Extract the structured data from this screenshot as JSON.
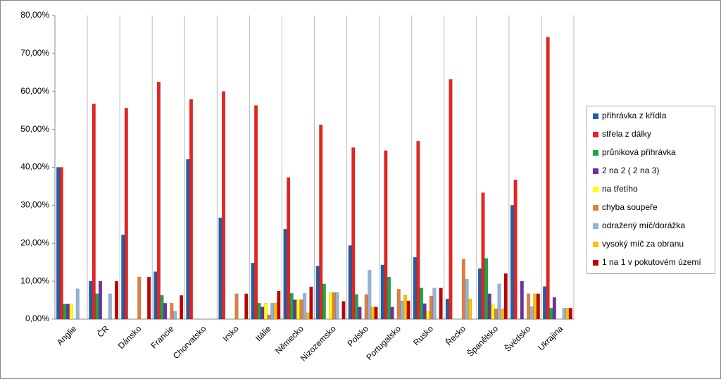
{
  "chart_data": {
    "type": "bar",
    "categories": [
      "Anglie",
      "ČR",
      "Dánsko",
      "Francie",
      "Chorvatsko",
      "Irsko",
      "Itálie",
      "Německo",
      "Nizozemsko",
      "Polsko",
      "Portugalsko",
      "Rusko",
      "Řecko",
      "Španělsko",
      "Švédsko",
      "Ukrajina"
    ],
    "series": [
      {
        "name": "přihrávka z křídla",
        "color": "#1f5fa8",
        "values": [
          40,
          10,
          22.2,
          12.5,
          42.1,
          26.7,
          14.8,
          23.7,
          14,
          19.4,
          14.3,
          16.3,
          5.3,
          13.3,
          30,
          8.6
        ]
      },
      {
        "name": "střela z dálky",
        "color": "#e8231f",
        "values": [
          40,
          56.7,
          55.6,
          62.5,
          57.9,
          60,
          56.3,
          37.3,
          51.2,
          45.2,
          44.4,
          46.9,
          63.2,
          33.3,
          36.7,
          74.3
        ]
      },
      {
        "name": "průniková přihrávka",
        "color": "#18a84a",
        "values": [
          4,
          6.7,
          0,
          6.25,
          0,
          0,
          4.2,
          6.8,
          9.3,
          6.5,
          11.1,
          8.2,
          0,
          16,
          0,
          2.9
        ]
      },
      {
        "name": "2 na 2 ( 2 na 3)",
        "color": "#7030a0",
        "values": [
          4,
          10,
          0,
          4.2,
          0,
          0,
          3.2,
          5.1,
          0,
          3.2,
          3.2,
          4.1,
          0,
          6.7,
          10,
          5.7
        ]
      },
      {
        "name": "na třetího",
        "color": "#ffff00",
        "values": [
          4,
          0,
          0,
          0,
          0,
          0,
          4.2,
          5.1,
          7,
          0,
          0,
          2,
          0,
          4,
          0,
          0
        ]
      },
      {
        "name": "chyba soupeře",
        "color": "#e08040",
        "values": [
          0,
          0,
          11.1,
          4.2,
          0,
          6.7,
          1.1,
          5.1,
          7,
          6.5,
          7.9,
          6.1,
          15.8,
          2.7,
          6.7,
          0
        ]
      },
      {
        "name": "odražený míč/dorážka",
        "color": "#95b3d7",
        "values": [
          8,
          6.7,
          0,
          2.1,
          0,
          0,
          4.2,
          6.8,
          7,
          12.9,
          4.8,
          8.2,
          10.5,
          9.3,
          3.3,
          2.9
        ]
      },
      {
        "name": "vysoký míč za obranu",
        "color": "#ffc000",
        "values": [
          0,
          0,
          0,
          0,
          0,
          0,
          4.2,
          1.7,
          0,
          3.2,
          6.3,
          0,
          5.3,
          2.7,
          6.7,
          2.9
        ]
      },
      {
        "name": "1 na 1 v pokutovém území",
        "color": "#c00000",
        "values": [
          0,
          10,
          11.1,
          6.25,
          0,
          6.7,
          7.4,
          8.5,
          4.7,
          3.2,
          4.8,
          8.2,
          0,
          12,
          6.7,
          2.9
        ]
      }
    ],
    "ylim": [
      0,
      80
    ],
    "yticks": [
      {
        "value": 0,
        "label": "0,00%"
      },
      {
        "value": 10,
        "label": "10,00%"
      },
      {
        "value": 20,
        "label": "20,00%"
      },
      {
        "value": 30,
        "label": "30,00%"
      },
      {
        "value": 40,
        "label": "40,00%"
      },
      {
        "value": 50,
        "label": "50,00%"
      },
      {
        "value": 60,
        "label": "60,00%"
      },
      {
        "value": 70,
        "label": "70,00%"
      },
      {
        "value": 80,
        "label": "80,00%"
      }
    ],
    "legend": "right"
  }
}
